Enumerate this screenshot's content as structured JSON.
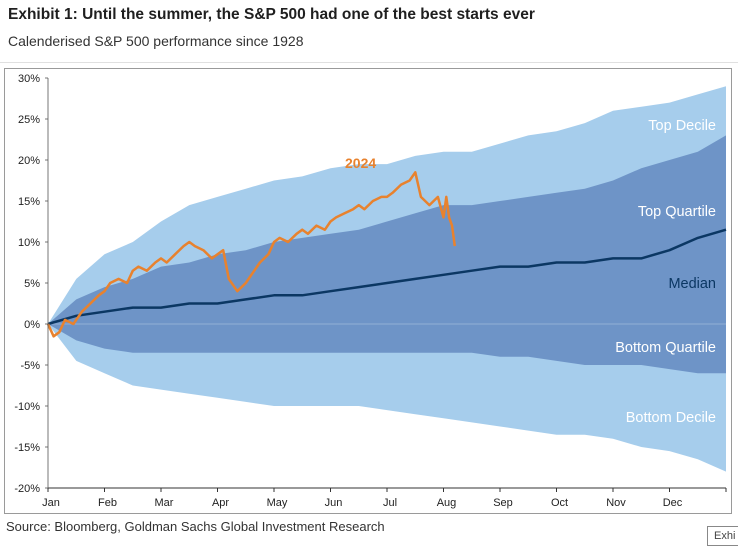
{
  "header": {
    "title": "Exhibit 1: Until the summer, the S&P 500 had one of the best starts ever",
    "subtitle": "Calenderised S&P 500 performance since 1928"
  },
  "footer": {
    "source": "Source: Bloomberg, Goldman Sachs Global Investment Research",
    "tag": "Exhi"
  },
  "colors": {
    "decile_band": "#a6cdec",
    "quartile_band": "#6e94c7",
    "median_line": "#0b3763",
    "line_2024": "#e8822e",
    "band_label_light": "#ffffff",
    "median_label": "#0b3763"
  },
  "chart_data": {
    "type": "area",
    "title": "",
    "xlabel": "",
    "ylabel": "",
    "x_unit": "month",
    "categories": [
      "Jan",
      "Feb",
      "Mar",
      "Apr",
      "May",
      "Jun",
      "Jul",
      "Aug",
      "Sep",
      "Oct",
      "Nov",
      "Dec"
    ],
    "xlim": [
      0,
      12
    ],
    "ylim": [
      -20,
      30
    ],
    "yticks": [
      -20,
      -15,
      -10,
      -5,
      0,
      5,
      10,
      15,
      20,
      25,
      30
    ],
    "ytick_labels": [
      "-20%",
      "-15%",
      "-10%",
      "-5%",
      "0%",
      "5%",
      "10%",
      "15%",
      "20%",
      "25%",
      "30%"
    ],
    "grid": false,
    "legend": "none",
    "x": [
      0,
      0.5,
      1,
      1.5,
      2,
      2.5,
      3,
      3.5,
      4,
      4.5,
      5,
      5.5,
      6,
      6.5,
      7,
      7.5,
      8,
      8.5,
      9,
      9.5,
      10,
      10.5,
      11,
      11.5,
      12
    ],
    "series": [
      {
        "name": "Top Decile",
        "role": "band-upper",
        "values": [
          0,
          5.5,
          8.5,
          10,
          12.5,
          14.5,
          15.5,
          16.5,
          17.5,
          18,
          19,
          19.5,
          19.5,
          20.5,
          21,
          21,
          22,
          23,
          23.5,
          24.5,
          26,
          26.5,
          27,
          28,
          29
        ]
      },
      {
        "name": "Top Quartile",
        "role": "band-inner-upper",
        "values": [
          0,
          3,
          4.5,
          5.5,
          7,
          7.5,
          8.5,
          9,
          10,
          10.5,
          11,
          11.5,
          12.5,
          13.5,
          14.5,
          14.5,
          15,
          15.5,
          16,
          16.5,
          17.5,
          19,
          20,
          21,
          23
        ]
      },
      {
        "name": "Median",
        "role": "line",
        "values": [
          0,
          1,
          1.5,
          2,
          2,
          2.5,
          2.5,
          3,
          3.5,
          3.5,
          4,
          4.5,
          5,
          5.5,
          6,
          6.5,
          7,
          7,
          7.5,
          7.5,
          8,
          8,
          9,
          10.5,
          11.5
        ]
      },
      {
        "name": "Bottom Quartile",
        "role": "band-inner-lower",
        "values": [
          0,
          -2,
          -3,
          -3.5,
          -3.5,
          -3.5,
          -3.5,
          -3.5,
          -3.5,
          -3.5,
          -3.5,
          -3.5,
          -3.5,
          -3.5,
          -3.5,
          -3.5,
          -4,
          -4,
          -4.5,
          -5,
          -5,
          -5,
          -5.5,
          -6,
          -6
        ]
      },
      {
        "name": "Bottom Decile",
        "role": "band-lower",
        "values": [
          0,
          -4.5,
          -6,
          -7.5,
          -8,
          -8.5,
          -9,
          -9.5,
          -10,
          -10,
          -10,
          -10,
          -10.5,
          -11,
          -11.5,
          -12,
          -12.5,
          -13,
          -13.5,
          -13.5,
          -14,
          -15,
          -15.5,
          -16.5,
          -18
        ]
      },
      {
        "name": "2024",
        "role": "line",
        "x": [
          0,
          0.1,
          0.2,
          0.3,
          0.45,
          0.6,
          0.75,
          0.9,
          1.0,
          1.1,
          1.25,
          1.4,
          1.5,
          1.6,
          1.75,
          1.9,
          2.0,
          2.1,
          2.25,
          2.4,
          2.5,
          2.6,
          2.75,
          2.9,
          3.0,
          3.1,
          3.2,
          3.35,
          3.5,
          3.6,
          3.75,
          3.9,
          4.0,
          4.1,
          4.25,
          4.4,
          4.5,
          4.6,
          4.75,
          4.9,
          5.0,
          5.1,
          5.25,
          5.4,
          5.5,
          5.6,
          5.75,
          5.9,
          6.0,
          6.1,
          6.25,
          6.4,
          6.5,
          6.6,
          6.75,
          6.9,
          7.0,
          7.05,
          7.1,
          7.15,
          7.2
        ],
        "values": [
          0,
          -1.5,
          -1,
          0.5,
          0,
          1.5,
          2.5,
          3.5,
          4,
          5,
          5.5,
          5,
          6.5,
          7,
          6.5,
          7.5,
          8,
          7.5,
          8.5,
          9.5,
          10,
          9.5,
          9,
          8,
          8.5,
          9,
          5.5,
          4,
          5,
          6,
          7.5,
          8.5,
          10,
          10.5,
          10,
          11,
          11.5,
          11,
          12,
          11.5,
          12.5,
          13,
          13.5,
          14,
          14.5,
          14,
          15,
          15.5,
          15.5,
          16,
          17,
          17.5,
          18.5,
          15.5,
          14.5,
          15.5,
          13,
          15.5,
          13,
          12,
          9.5
        ]
      }
    ],
    "band_labels": [
      "Top Decile",
      "Top Quartile",
      "Median",
      "Bottom Quartile",
      "Bottom Decile"
    ],
    "annotation": "2024"
  }
}
